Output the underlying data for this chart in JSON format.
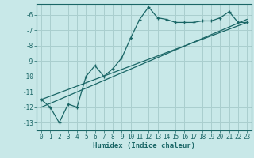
{
  "xlabel": "Humidex (Indice chaleur)",
  "background_color": "#c8e8e8",
  "grid_color": "#aacece",
  "line_color": "#1a6666",
  "xlim": [
    -0.5,
    23.5
  ],
  "ylim": [
    -13.5,
    -5.3
  ],
  "yticks": [
    -6,
    -7,
    -8,
    -9,
    -10,
    -11,
    -12,
    -13
  ],
  "xticks": [
    0,
    1,
    2,
    3,
    4,
    5,
    6,
    7,
    8,
    9,
    10,
    11,
    12,
    13,
    14,
    15,
    16,
    17,
    18,
    19,
    20,
    21,
    22,
    23
  ],
  "main_x": [
    0,
    1,
    2,
    3,
    4,
    5,
    6,
    7,
    8,
    9,
    10,
    11,
    12,
    13,
    14,
    15,
    16,
    17,
    18,
    19,
    20,
    21,
    22,
    23
  ],
  "main_y": [
    -11.5,
    -12.0,
    -13.0,
    -11.8,
    -12.0,
    -10.0,
    -9.3,
    -10.0,
    -9.5,
    -8.8,
    -7.5,
    -6.3,
    -5.5,
    -6.2,
    -6.3,
    -6.5,
    -6.5,
    -6.5,
    -6.4,
    -6.4,
    -6.2,
    -5.8,
    -6.5,
    -6.5
  ],
  "line1_x": [
    0,
    23
  ],
  "line1_y": [
    -11.5,
    -6.5
  ],
  "line2_x": [
    0,
    23
  ],
  "line2_y": [
    -12.0,
    -6.3
  ]
}
